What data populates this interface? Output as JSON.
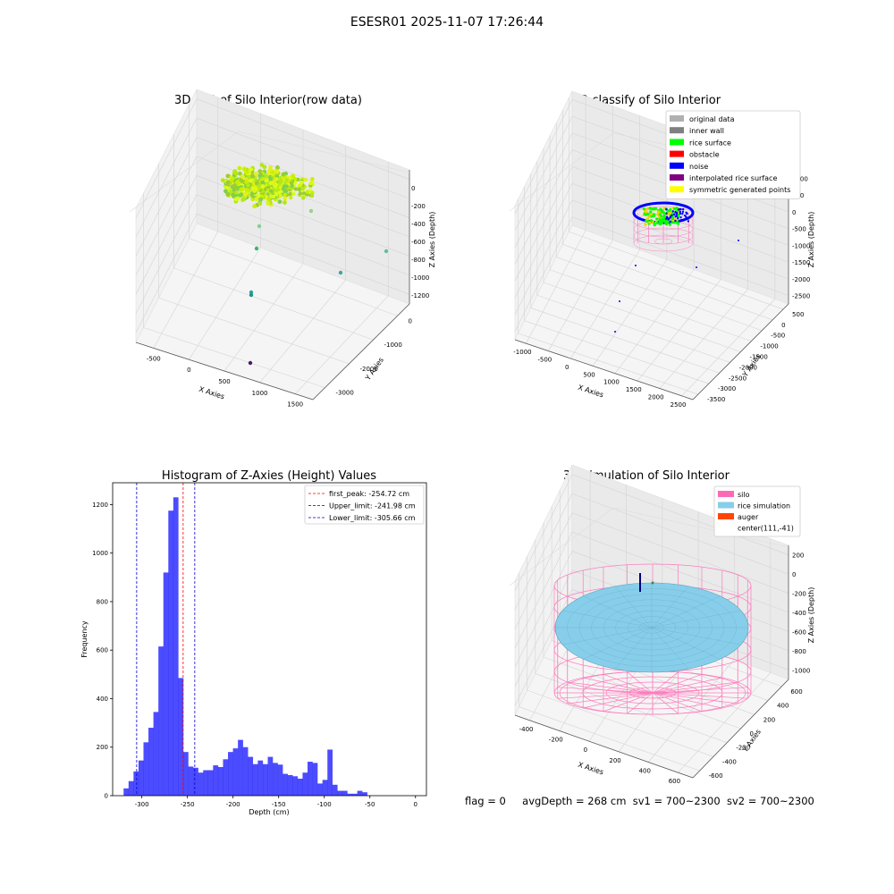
{
  "suptitle": "ESESR01 2025-11-07 17:26:44",
  "footer": {
    "flag": "flag = 0",
    "avg_depth": "avgDepth = 268 cm",
    "sv1": "sv1 = 700~2300",
    "sv2": "sv2 = 700~2300"
  },
  "colors": {
    "hist_bar": "#0000ff",
    "peak_line": "#ff0000",
    "limit_line": "#0000cc",
    "silo": "#ff69b4",
    "rice_simulation": "#87ceeb",
    "auger": "#ff4500",
    "inner_wall": "#808080",
    "rice_surface": "#00ff00",
    "noise": "#0000ff",
    "interpolated_rice_surface": "#800080",
    "symmetric_generated_points": "#ffff00",
    "original_data": "#b0b0b0"
  },
  "chart_data": [
    {
      "type": "scatter",
      "title": "3D Plot of Silo Interior(row data)",
      "xlabel": "X Axies",
      "ylabel": "Y Axies",
      "zlabel": "Z Axies (Depth)",
      "x_ticks": [
        "-500",
        "0",
        "500",
        "1000",
        "1500"
      ],
      "y_ticks": [
        "-3000",
        "-2000",
        "-1000",
        "0"
      ],
      "z_ticks": [
        "0",
        "-200",
        "-400",
        "-600",
        "-800",
        "-1000",
        "-1200"
      ],
      "outliers": [
        {
          "x": 200,
          "y": -400,
          "z": -650
        },
        {
          "x": 300,
          "y": -500,
          "z": -800
        },
        {
          "x": 1500,
          "y": -1500,
          "z": -800
        },
        {
          "x": 1200,
          "y": -2000,
          "z": -1000
        },
        {
          "x": 600,
          "y": -2500,
          "z": -1100
        },
        {
          "x": 1000,
          "y": -3000,
          "z": -1350
        }
      ]
    },
    {
      "type": "scatter",
      "title": "3D classify of Silo Interior",
      "xlabel": "X Axies",
      "ylabel": "Y Axies",
      "zlabel": "Z Axies (Depth)",
      "x_ticks": [
        "-1000",
        "-500",
        "0",
        "500",
        "1000",
        "1500",
        "2000",
        "2500"
      ],
      "y_ticks": [
        "-3500",
        "-3000",
        "-2500",
        "-2000",
        "-1500",
        "-1000",
        "-500",
        "0",
        "500"
      ],
      "z_ticks": [
        "1000",
        "500",
        "0",
        "-500",
        "-1000",
        "-1500",
        "-2000",
        "-2500"
      ],
      "legend": [
        "original data",
        "inner wall",
        "rice surface",
        "obstacle",
        "noise",
        "interpolated rice surface",
        "symmetric generated points"
      ],
      "legend_colors": [
        "#b0b0b0",
        "#808080",
        "#00ff00",
        "#ff0000",
        "#0000ff",
        "#800080",
        "#ffff00"
      ]
    },
    {
      "type": "bar",
      "title": "Histogram of Z-Axies (Height) Values",
      "xlabel": "Depth (cm)",
      "ylabel": "Frequency",
      "xlim": [
        -332,
        12
      ],
      "ylim": [
        0,
        1290
      ],
      "x_ticks": [
        -300,
        -250,
        -200,
        -150,
        -100,
        -50,
        0
      ],
      "y_ticks": [
        0,
        200,
        400,
        600,
        800,
        1000,
        1200
      ],
      "bin_start": -320,
      "bin_width": 5.45,
      "values": [
        30,
        60,
        100,
        145,
        220,
        280,
        345,
        615,
        920,
        1175,
        1230,
        485,
        180,
        120,
        115,
        95,
        105,
        105,
        125,
        118,
        150,
        180,
        195,
        230,
        200,
        160,
        130,
        145,
        130,
        160,
        135,
        128,
        90,
        85,
        80,
        70,
        95,
        140,
        135,
        50,
        65,
        190,
        45,
        20,
        20,
        8,
        8,
        20,
        14
      ],
      "vlines": [
        {
          "label": "first_peak: -254.72 cm",
          "x": -254.72,
          "color": "#ff0000"
        },
        {
          "label": "Upper_limit: -241.98 cm",
          "x": -241.98,
          "color": "#0000cc"
        },
        {
          "label": "Lower_limit: -305.66 cm",
          "x": -305.66,
          "color": "#0000cc"
        }
      ]
    },
    {
      "type": "scatter",
      "title": "3D simulation of Silo Interior",
      "xlabel": "X Axies",
      "ylabel": "Y Axies",
      "zlabel": "Z Axies (Depth)",
      "x_ticks": [
        "-400",
        "-200",
        "0",
        "200",
        "400",
        "600"
      ],
      "y_ticks": [
        "-600",
        "-400",
        "-200",
        "0",
        "200",
        "400",
        "600"
      ],
      "z_ticks": [
        "200",
        "0",
        "-200",
        "-400",
        "-600",
        "-800",
        "-1000"
      ],
      "legend": [
        "silo",
        "rice simulation",
        "auger",
        "center(111,-41)"
      ],
      "legend_colors": [
        "#ff69b4",
        "#87ceeb",
        "#ff4500",
        ""
      ]
    }
  ]
}
